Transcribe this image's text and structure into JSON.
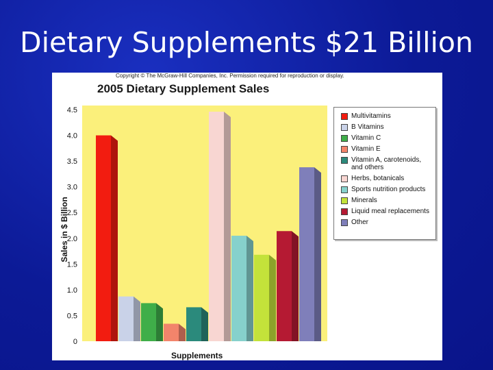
{
  "slide": {
    "title": "Dietary Supplements $21 Billion"
  },
  "figure": {
    "copyright": "Copyright © The McGraw-Hill Companies, Inc. Permission required for reproduction or display."
  },
  "chart_data": {
    "type": "bar",
    "title": "2005 Dietary Supplement Sales",
    "xlabel": "Supplements",
    "ylabel": "Sales in $ Billion",
    "ylim": [
      0,
      4.5
    ],
    "yticks": [
      "0",
      "0.5",
      "1.0",
      "1.5",
      "2.0",
      "2.5",
      "3.0",
      "3.5",
      "4.0",
      "4.5"
    ],
    "grid": false,
    "legend_position": "right",
    "categories": [
      "Multivitamins",
      "B Vitamins",
      "Vitamin C",
      "Vitamin E",
      "Vitamin A, carotenoids, and others",
      "Herbs, botanicals",
      "Sports nutrition products",
      "Minerals",
      "Liquid meal replacements",
      "Other"
    ],
    "values": [
      4.0,
      0.87,
      0.74,
      0.34,
      0.66,
      4.46,
      2.05,
      1.68,
      2.14,
      3.38
    ],
    "colors": [
      "#f21c10",
      "#c9d2e8",
      "#3fae49",
      "#f2846b",
      "#2b8a7c",
      "#f8d6d2",
      "#86d1cc",
      "#c3e23a",
      "#b51a33",
      "#7f7fba"
    ],
    "plot_background": "#fbf07b"
  },
  "legend": {
    "items": [
      {
        "label": "Multivitamins",
        "color": "#f21c10"
      },
      {
        "label": "B Vitamins",
        "color": "#c9d2e8"
      },
      {
        "label": "Vitamin C",
        "color": "#3fae49"
      },
      {
        "label": "Vitamin E",
        "color": "#f2846b"
      },
      {
        "label": "Vitamin A, carotenoids,",
        "label2": "and others",
        "color": "#2b8a7c"
      },
      {
        "label": "Herbs, botanicals",
        "color": "#f8d6d2"
      },
      {
        "label": "Sports nutrition products",
        "color": "#86d1cc"
      },
      {
        "label": "Minerals",
        "color": "#c3e23a"
      },
      {
        "label": "Liquid meal replacements",
        "color": "#b51a33"
      },
      {
        "label": "Other",
        "color": "#7f7fba"
      }
    ]
  }
}
